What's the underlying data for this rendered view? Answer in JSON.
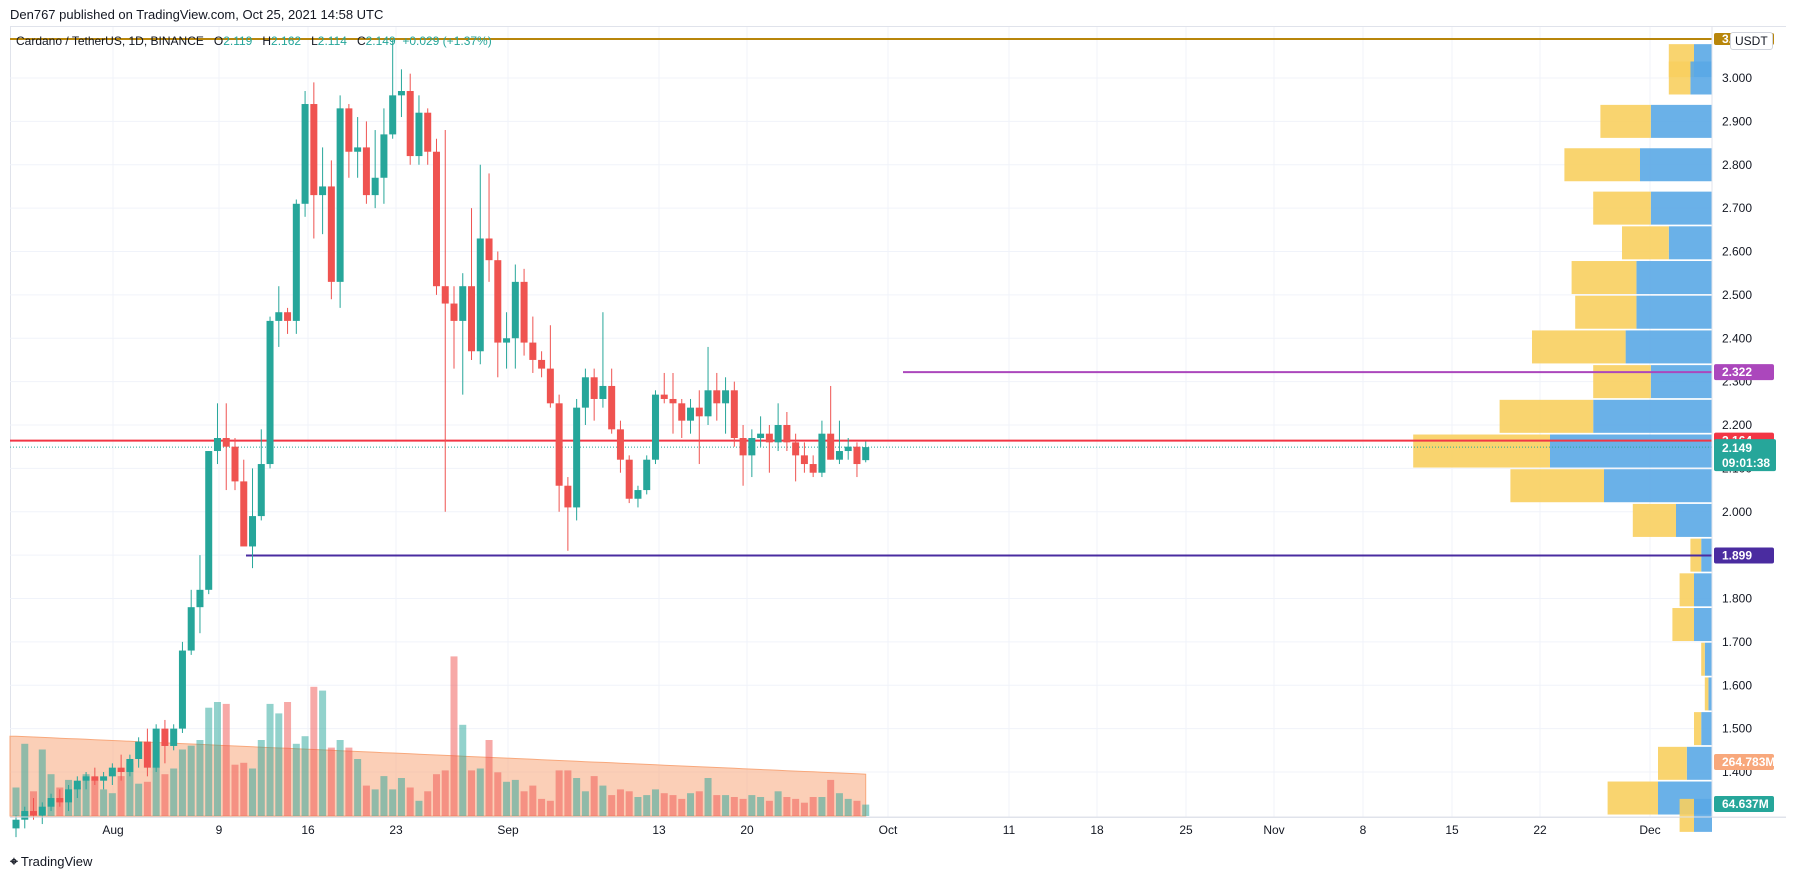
{
  "header": {
    "published": "Den767 published on TradingView.com, Oct 25, 2021 14:58 UTC"
  },
  "legend": {
    "symbol": "Cardano / TetherUS, 1D, BINANCE",
    "o_label": "O",
    "o": "2.119",
    "h_label": "H",
    "h": "2.162",
    "l_label": "L",
    "l": "2.114",
    "c_label": "C",
    "c": "2.149",
    "change": "+0.029 (+1.37%)"
  },
  "currency": "USDT",
  "footer": {
    "brand": "TradingView",
    "logo_icon": "tradingview-logo-icon"
  },
  "colors": {
    "up": "#26a69a",
    "down": "#ef5350",
    "up_volume": "#26a69a",
    "down_volume": "#ef5350",
    "volume_ma": "#f8a87c",
    "resistance": "#ab47bc",
    "support": "#4a2ca0",
    "current": "#f23645",
    "top_line": "#b8860b",
    "vp_up": "#5aa9e6",
    "vp_down": "#f8cf5f"
  },
  "chart_data": {
    "type": "candlestick",
    "title": "Cardano / TetherUS, 1D, BINANCE",
    "y_ticks": [
      "3.000",
      "2.900",
      "2.800",
      "2.700",
      "2.600",
      "2.500",
      "2.400",
      "2.300",
      "2.200",
      "2.100",
      "2.000",
      "1.900",
      "1.800",
      "1.700",
      "1.600",
      "1.500",
      "1.400"
    ],
    "x_ticks": [
      "Aug",
      "9",
      "16",
      "23",
      "Sep",
      "13",
      "20",
      "Oct",
      "11",
      "18",
      "25",
      "Nov",
      "8",
      "15",
      "22",
      "Dec"
    ],
    "ylim": [
      1.31,
      3.09
    ],
    "start_date": "2021-07-26",
    "candles": [
      [
        1.27,
        1.3,
        1.25,
        1.29
      ],
      [
        1.29,
        1.32,
        1.27,
        1.31
      ],
      [
        1.31,
        1.34,
        1.29,
        1.3
      ],
      [
        1.3,
        1.33,
        1.28,
        1.32
      ],
      [
        1.32,
        1.35,
        1.31,
        1.34
      ],
      [
        1.34,
        1.36,
        1.32,
        1.33
      ],
      [
        1.33,
        1.37,
        1.31,
        1.36
      ],
      [
        1.36,
        1.39,
        1.34,
        1.38
      ],
      [
        1.38,
        1.4,
        1.36,
        1.39
      ],
      [
        1.39,
        1.41,
        1.37,
        1.38
      ],
      [
        1.38,
        1.4,
        1.36,
        1.39
      ],
      [
        1.39,
        1.42,
        1.37,
        1.41
      ],
      [
        1.41,
        1.44,
        1.38,
        1.4
      ],
      [
        1.4,
        1.44,
        1.39,
        1.43
      ],
      [
        1.43,
        1.48,
        1.41,
        1.47
      ],
      [
        1.47,
        1.5,
        1.39,
        1.41
      ],
      [
        1.41,
        1.51,
        1.4,
        1.5
      ],
      [
        1.5,
        1.52,
        1.42,
        1.46
      ],
      [
        1.46,
        1.51,
        1.45,
        1.5
      ],
      [
        1.5,
        1.7,
        1.49,
        1.68
      ],
      [
        1.68,
        1.82,
        1.67,
        1.78
      ],
      [
        1.78,
        1.9,
        1.72,
        1.82
      ],
      [
        1.82,
        2.14,
        1.81,
        2.14
      ],
      [
        2.14,
        2.25,
        2.11,
        2.17
      ],
      [
        2.17,
        2.25,
        2.05,
        2.15
      ],
      [
        2.15,
        2.17,
        2.05,
        2.07
      ],
      [
        2.07,
        2.12,
        1.93,
        1.92
      ],
      [
        1.92,
        2.1,
        1.87,
        1.99
      ],
      [
        1.99,
        2.19,
        1.98,
        2.11
      ],
      [
        2.11,
        2.45,
        2.1,
        2.44
      ],
      [
        2.44,
        2.52,
        2.38,
        2.46
      ],
      [
        2.46,
        2.47,
        2.41,
        2.44
      ],
      [
        2.44,
        2.72,
        2.41,
        2.71
      ],
      [
        2.71,
        2.97,
        2.68,
        2.94
      ],
      [
        2.94,
        2.99,
        2.63,
        2.73
      ],
      [
        2.73,
        2.84,
        2.64,
        2.75
      ],
      [
        2.75,
        2.81,
        2.49,
        2.53
      ],
      [
        2.53,
        2.96,
        2.47,
        2.93
      ],
      [
        2.93,
        2.94,
        2.77,
        2.83
      ],
      [
        2.83,
        2.91,
        2.77,
        2.84
      ],
      [
        2.84,
        2.9,
        2.71,
        2.73
      ],
      [
        2.73,
        2.88,
        2.7,
        2.77
      ],
      [
        2.77,
        2.93,
        2.71,
        2.87
      ],
      [
        2.87,
        3.09,
        2.86,
        2.96
      ],
      [
        2.96,
        3.02,
        2.91,
        2.97
      ],
      [
        2.97,
        3.01,
        2.8,
        2.82
      ],
      [
        2.82,
        2.96,
        2.8,
        2.92
      ],
      [
        2.92,
        2.93,
        2.8,
        2.83
      ],
      [
        2.83,
        2.86,
        2.5,
        2.52
      ],
      [
        2.52,
        2.88,
        2.0,
        2.48
      ],
      [
        2.48,
        2.52,
        2.33,
        2.44
      ],
      [
        2.44,
        2.55,
        2.27,
        2.52
      ],
      [
        2.52,
        2.7,
        2.35,
        2.37
      ],
      [
        2.37,
        2.8,
        2.34,
        2.63
      ],
      [
        2.63,
        2.78,
        2.53,
        2.58
      ],
      [
        2.58,
        2.6,
        2.31,
        2.39
      ],
      [
        2.39,
        2.46,
        2.33,
        2.4
      ],
      [
        2.4,
        2.57,
        2.33,
        2.53
      ],
      [
        2.53,
        2.56,
        2.36,
        2.39
      ],
      [
        2.39,
        2.45,
        2.32,
        2.35
      ],
      [
        2.35,
        2.37,
        2.31,
        2.33
      ],
      [
        2.33,
        2.43,
        2.24,
        2.25
      ],
      [
        2.25,
        2.27,
        2.0,
        2.06
      ],
      [
        2.06,
        2.08,
        1.91,
        2.01
      ],
      [
        2.01,
        2.26,
        1.98,
        2.24
      ],
      [
        2.24,
        2.33,
        2.2,
        2.31
      ],
      [
        2.31,
        2.33,
        2.21,
        2.26
      ],
      [
        2.26,
        2.46,
        2.24,
        2.29
      ],
      [
        2.29,
        2.33,
        2.18,
        2.19
      ],
      [
        2.19,
        2.21,
        2.09,
        2.12
      ],
      [
        2.12,
        2.13,
        2.02,
        2.03
      ],
      [
        2.03,
        2.06,
        2.01,
        2.05
      ],
      [
        2.05,
        2.13,
        2.04,
        2.12
      ],
      [
        2.12,
        2.28,
        2.11,
        2.27
      ],
      [
        2.27,
        2.32,
        2.25,
        2.26
      ],
      [
        2.26,
        2.32,
        2.18,
        2.25
      ],
      [
        2.25,
        2.26,
        2.17,
        2.21
      ],
      [
        2.21,
        2.26,
        2.18,
        2.24
      ],
      [
        2.24,
        2.28,
        2.11,
        2.22
      ],
      [
        2.22,
        2.38,
        2.2,
        2.28
      ],
      [
        2.28,
        2.32,
        2.21,
        2.25
      ],
      [
        2.25,
        2.31,
        2.18,
        2.28
      ],
      [
        2.28,
        2.3,
        2.15,
        2.17
      ],
      [
        2.17,
        2.2,
        2.06,
        2.13
      ],
      [
        2.13,
        2.19,
        2.08,
        2.17
      ],
      [
        2.17,
        2.22,
        2.15,
        2.18
      ],
      [
        2.18,
        2.2,
        2.09,
        2.16
      ],
      [
        2.16,
        2.25,
        2.14,
        2.2
      ],
      [
        2.2,
        2.23,
        2.14,
        2.16
      ],
      [
        2.16,
        2.18,
        2.07,
        2.13
      ],
      [
        2.13,
        2.16,
        2.09,
        2.11
      ],
      [
        2.11,
        2.13,
        2.08,
        2.09
      ],
      [
        2.09,
        2.21,
        2.08,
        2.18
      ],
      [
        2.18,
        2.29,
        2.12,
        2.12
      ],
      [
        2.12,
        2.21,
        2.11,
        2.14
      ],
      [
        2.14,
        2.17,
        2.12,
        2.15
      ],
      [
        2.15,
        2.16,
        2.08,
        2.11
      ],
      [
        2.119,
        2.162,
        2.114,
        2.149
      ]
    ],
    "volume": [
      15,
      38,
      13,
      35,
      22,
      15,
      19,
      15,
      22,
      19,
      14,
      12,
      21,
      28,
      17,
      18,
      26,
      22,
      25,
      35,
      37,
      40,
      57,
      60,
      59,
      27,
      28,
      25,
      40,
      59,
      54,
      60,
      38,
      42,
      68,
      66,
      36,
      40,
      36,
      30,
      16,
      14,
      21,
      14,
      20,
      15,
      8,
      13,
      22,
      24,
      84,
      48,
      24,
      25,
      40,
      23,
      18,
      19,
      13,
      16,
      9,
      8,
      24,
      24,
      20,
      13,
      21,
      16,
      11,
      14,
      13,
      10,
      11,
      14,
      12,
      11,
      9,
      12,
      13,
      20,
      11,
      11,
      10,
      9,
      11,
      10,
      8,
      13,
      10,
      9,
      7,
      10,
      10,
      19,
      12,
      9,
      8,
      6
    ],
    "volume_ma_start": 42,
    "volume_ma_end": 22,
    "volume_profile": [
      {
        "price": 3.04,
        "up": 0.05,
        "down": 0.07
      },
      {
        "price": 3.0,
        "up": 0.06,
        "down": 0.06
      },
      {
        "price": 2.9,
        "up": 0.17,
        "down": 0.14
      },
      {
        "price": 2.8,
        "up": 0.2,
        "down": 0.21
      },
      {
        "price": 2.7,
        "up": 0.17,
        "down": 0.16
      },
      {
        "price": 2.62,
        "up": 0.12,
        "down": 0.13
      },
      {
        "price": 2.54,
        "up": 0.21,
        "down": 0.18
      },
      {
        "price": 2.46,
        "up": 0.21,
        "down": 0.17
      },
      {
        "price": 2.38,
        "up": 0.24,
        "down": 0.26
      },
      {
        "price": 2.3,
        "up": 0.17,
        "down": 0.16
      },
      {
        "price": 2.22,
        "up": 0.33,
        "down": 0.26
      },
      {
        "price": 2.14,
        "up": 0.45,
        "down": 0.38
      },
      {
        "price": 2.06,
        "up": 0.3,
        "down": 0.26
      },
      {
        "price": 1.98,
        "up": 0.1,
        "down": 0.12
      },
      {
        "price": 1.9,
        "up": 0.03,
        "down": 0.03
      },
      {
        "price": 1.82,
        "up": 0.05,
        "down": 0.04
      },
      {
        "price": 1.74,
        "up": 0.05,
        "down": 0.06
      },
      {
        "price": 1.66,
        "up": 0.02,
        "down": 0.01
      },
      {
        "price": 1.58,
        "up": 0.01,
        "down": 0.01
      },
      {
        "price": 1.5,
        "up": 0.03,
        "down": 0.02
      },
      {
        "price": 1.42,
        "up": 0.07,
        "down": 0.08
      },
      {
        "price": 1.34,
        "up": 0.15,
        "down": 0.14
      },
      {
        "price": 1.3,
        "up": 0.05,
        "down": 0.04
      }
    ],
    "resistance": {
      "value": 2.322,
      "label": "2.322"
    },
    "support": {
      "value": 1.899,
      "label": "1.899"
    },
    "current_line": {
      "value": 2.164,
      "label": "2.164"
    },
    "last_price": {
      "value": 2.149,
      "label": "2.149",
      "countdown": "09:01:38"
    },
    "top_tag": {
      "value": 3.09,
      "label": "3.09?"
    },
    "volume_tag": {
      "label": "264.783M"
    },
    "volume_ma_tag": {
      "label": "64.637M"
    }
  }
}
